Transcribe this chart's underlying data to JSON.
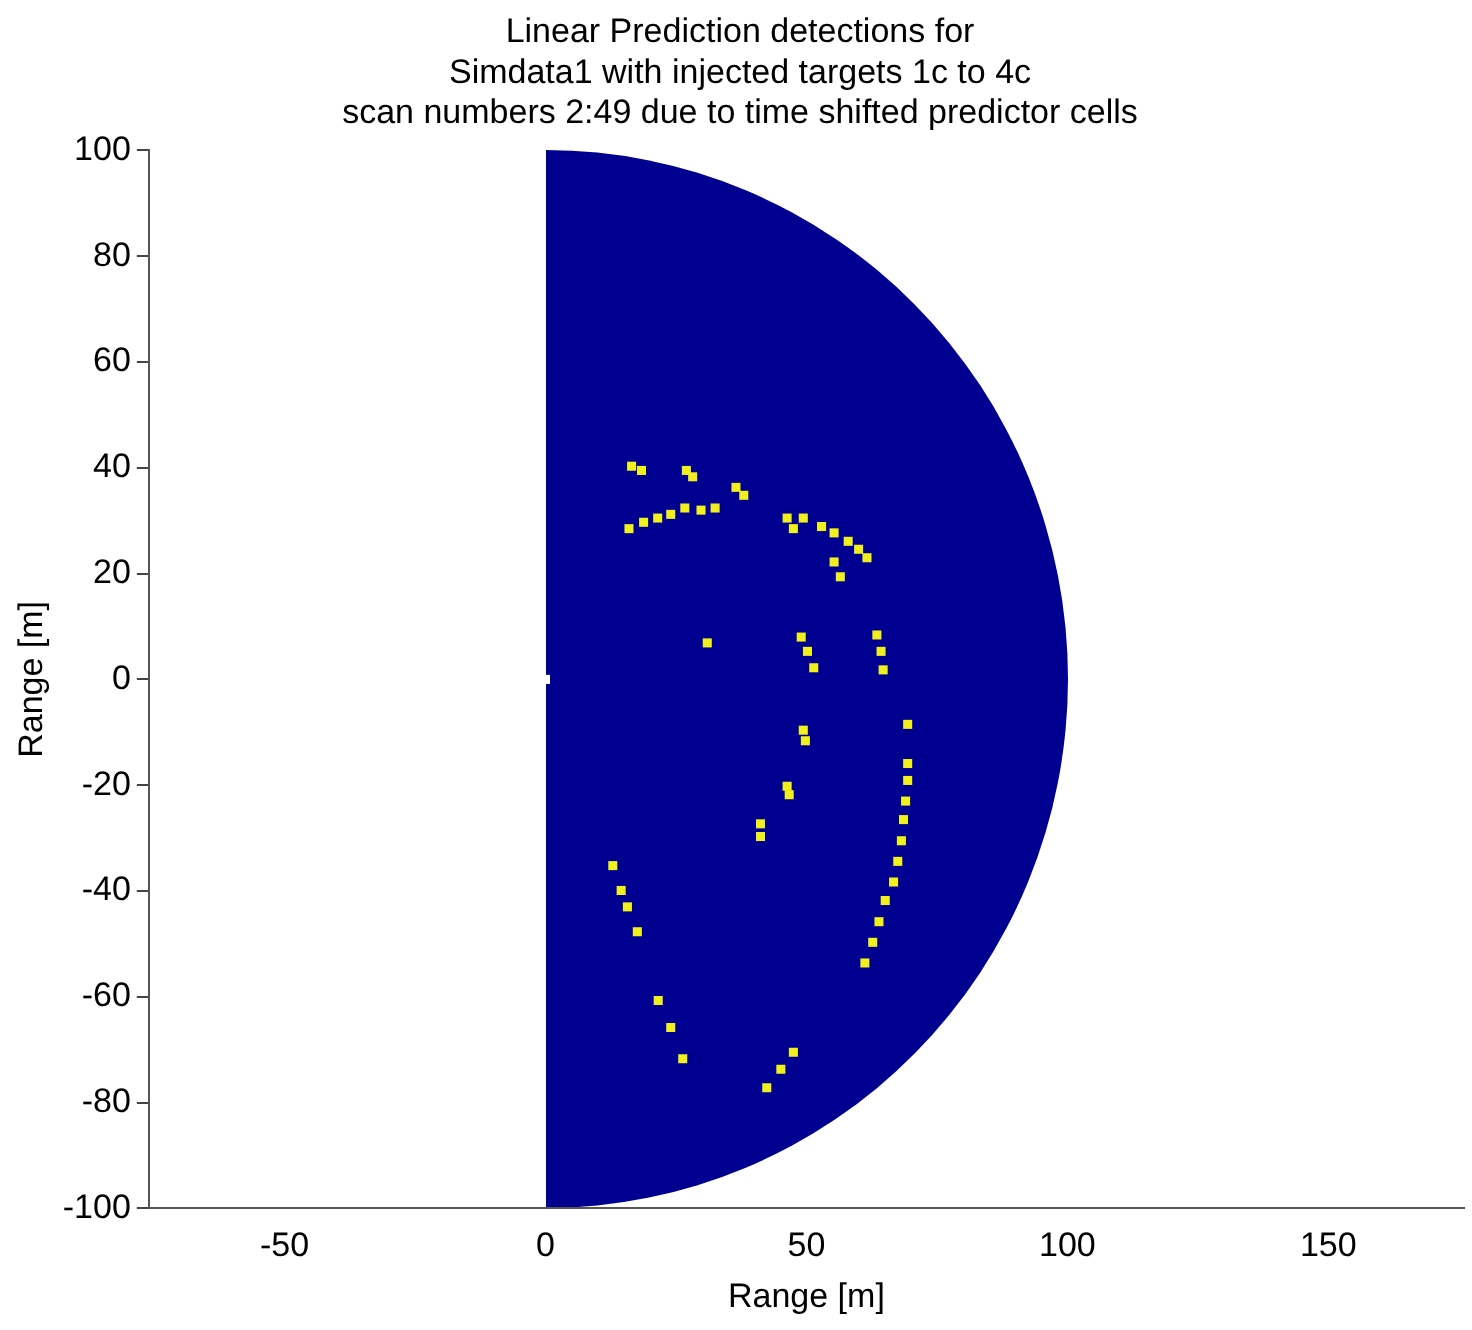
{
  "chart_data": {
    "type": "scatter",
    "title": "Linear Prediction detections for\nSimdata1 with injected targets 1c to 4c\nscan numbers 2:49 due to time shifted predictor cells",
    "xlabel": "Range [m]",
    "ylabel": "Range [m]",
    "marker": "square",
    "xlim": [
      -76,
      176
    ],
    "ylim": [
      -100,
      100
    ],
    "xticks": [
      -50,
      0,
      50,
      100,
      150
    ],
    "yticks": [
      -100,
      -80,
      -60,
      -40,
      -20,
      0,
      20,
      40,
      60,
      80,
      100
    ],
    "series": [
      {
        "color": "#f0f020",
        "x": [
          16.5,
          18.4,
          27,
          28.2,
          36.5,
          38,
          16,
          18.8,
          21.5,
          24,
          26.7,
          29.8,
          32.5,
          46.3,
          49.4,
          47.5,
          52.9,
          55.3,
          58,
          60,
          61.6,
          55.3,
          56.5,
          31,
          49,
          50.2,
          51.4,
          63.5,
          64.3,
          64.7,
          49.4,
          49.8,
          46.3,
          46.7,
          41.2,
          41.2,
          69.4,
          69.4,
          69.4,
          69,
          68.6,
          68.2,
          67.5,
          66.7,
          65.1,
          63.9,
          62.7,
          61.2,
          12.9,
          14.5,
          15.7,
          17.6,
          21.6,
          24,
          26.3,
          47.5,
          45.1,
          42.4
        ],
        "values": [
          40.3,
          39.5,
          39.5,
          38.3,
          36.3,
          34.8,
          28.5,
          29.7,
          30.5,
          31.2,
          32.4,
          32,
          32.4,
          30.5,
          30.5,
          28.5,
          28.9,
          27.7,
          26.1,
          24.6,
          23,
          22.2,
          19.4,
          6.9,
          8,
          5.3,
          2.2,
          8.4,
          5.3,
          1.8,
          -9.6,
          -11.6,
          -20.2,
          -21.8,
          -27.3,
          -29.7,
          -8.5,
          -15.9,
          -19.1,
          -23,
          -26.5,
          -30.5,
          -34.4,
          -38.3,
          -41.8,
          -45.8,
          -49.7,
          -53.6,
          -35.2,
          -39.9,
          -43,
          -47.7,
          -60.7,
          -65.8,
          -71.7,
          -70.5,
          -73.7,
          -77.2
        ]
      },
      {
        "color": "#ffffff",
        "x": [
          0
        ],
        "values": [
          0
        ]
      }
    ]
  }
}
